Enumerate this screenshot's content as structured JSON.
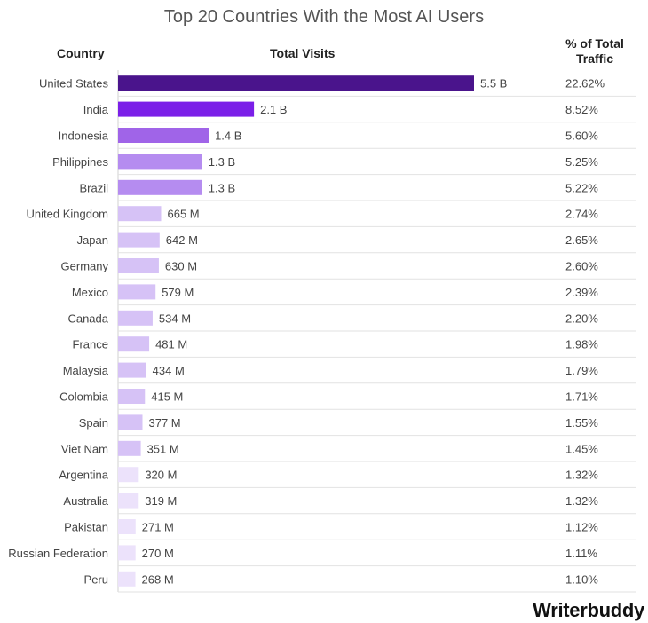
{
  "chart_data": {
    "type": "bar",
    "title": "Top 20 Countries With the Most AI Users",
    "headers": {
      "country": "Country",
      "visits": "Total Visits",
      "pct": "% of Total Traffic"
    },
    "categories": [
      "United States",
      "India",
      "Indonesia",
      "Philippines",
      "Brazil",
      "United Kingdom",
      "Japan",
      "Germany",
      "Mexico",
      "Canada",
      "France",
      "Malaysia",
      "Colombia",
      "Spain",
      "Viet Nam",
      "Argentina",
      "Australia",
      "Pakistan",
      "Russian Federation",
      "Peru"
    ],
    "values": [
      5500,
      2100,
      1400,
      1300,
      1300,
      665,
      642,
      630,
      579,
      534,
      481,
      434,
      415,
      377,
      351,
      320,
      319,
      271,
      270,
      268
    ],
    "value_unit": "millions of visits",
    "value_labels": [
      "5.5 B",
      "2.1 B",
      "1.4 B",
      "1.3 B",
      "1.3 B",
      "665 M",
      "642 M",
      "630 M",
      "579 M",
      "534 M",
      "481 M",
      "434 M",
      "415 M",
      "377 M",
      "351 M",
      "320 M",
      "319 M",
      "271 M",
      "270 M",
      "268 M"
    ],
    "pct_labels": [
      "22.62%",
      "8.52%",
      "5.60%",
      "5.25%",
      "5.22%",
      "2.74%",
      "2.65%",
      "2.60%",
      "2.39%",
      "2.20%",
      "1.98%",
      "1.79%",
      "1.71%",
      "1.55%",
      "1.45%",
      "1.32%",
      "1.32%",
      "1.12%",
      "1.11%",
      "1.10%"
    ],
    "colors": [
      "#4a148c",
      "#7b1fe8",
      "#a064e8",
      "#b58cf0",
      "#b58cf0",
      "#d6c2f6",
      "#d6c2f6",
      "#d6c2f6",
      "#d6c2f6",
      "#d6c2f6",
      "#d6c2f6",
      "#d6c2f6",
      "#d6c2f6",
      "#d6c2f6",
      "#d6c2f6",
      "#ece2fb",
      "#ece2fb",
      "#ece2fb",
      "#ece2fb",
      "#ece2fb"
    ],
    "grid": true
  },
  "brand": {
    "name": "Writerbuddy"
  }
}
